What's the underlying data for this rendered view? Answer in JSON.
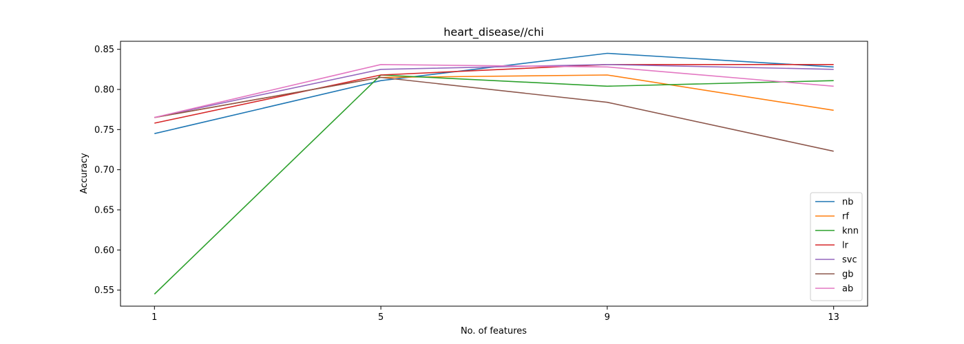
{
  "chart_data": {
    "type": "line",
    "title": "heart_disease//chi",
    "xlabel": "No. of features",
    "ylabel": "Accuracy",
    "x": [
      1,
      5,
      9,
      13
    ],
    "x_ticks": [
      "1",
      "5",
      "9",
      "13"
    ],
    "y_ticks": [
      "0.55",
      "0.60",
      "0.65",
      "0.70",
      "0.75",
      "0.80",
      "0.85"
    ],
    "xlim": [
      0.4,
      13.6
    ],
    "ylim": [
      0.53,
      0.86
    ],
    "grid": false,
    "legend_position": "lower-right",
    "series": [
      {
        "name": "nb",
        "color": "#1f77b4",
        "values": [
          0.745,
          0.811,
          0.845,
          0.828
        ]
      },
      {
        "name": "rf",
        "color": "#ff7f0e",
        "values": [
          0.765,
          0.815,
          0.818,
          0.774
        ]
      },
      {
        "name": "knn",
        "color": "#2ca02c",
        "values": [
          0.545,
          0.818,
          0.804,
          0.811
        ]
      },
      {
        "name": "lr",
        "color": "#d62728",
        "values": [
          0.758,
          0.818,
          0.831,
          0.831
        ]
      },
      {
        "name": "svc",
        "color": "#9467bd",
        "values": [
          0.765,
          0.825,
          0.831,
          0.825
        ]
      },
      {
        "name": "gb",
        "color": "#8c564b",
        "values": [
          0.765,
          0.815,
          0.784,
          0.723
        ]
      },
      {
        "name": "ab",
        "color": "#e377c2",
        "values": [
          0.765,
          0.831,
          0.828,
          0.804
        ]
      }
    ]
  }
}
